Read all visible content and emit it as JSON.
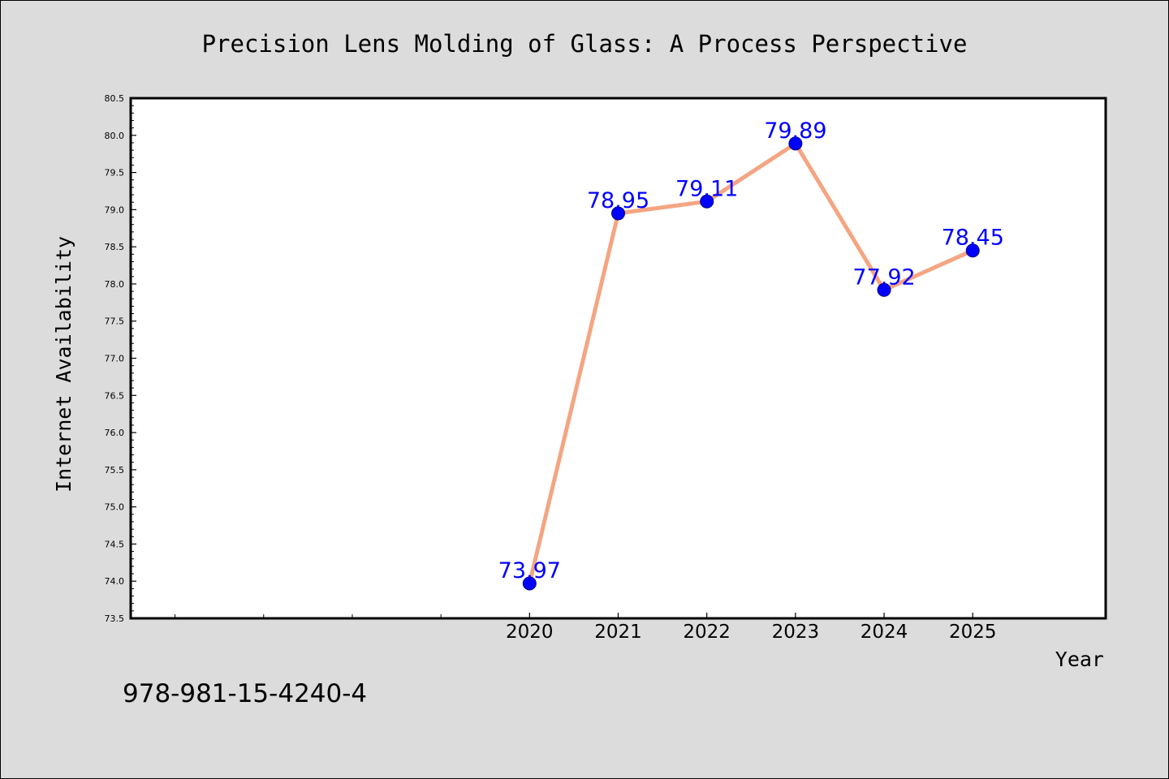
{
  "isbn": "978-981-15-4240-4",
  "chart_data": {
    "type": "line",
    "title": "Precision Lens Molding of Glass: A Process Perspective",
    "xlabel": "Year",
    "ylabel": "Internet Availability",
    "x": [
      2020,
      2021,
      2022,
      2023,
      2024,
      2025
    ],
    "series": [
      {
        "values": [
          73.97,
          78.95,
          79.11,
          79.89,
          77.92,
          78.45
        ]
      }
    ],
    "data_labels": [
      "73.97",
      "78.95",
      "79.11",
      "79.89",
      "77.92",
      "78.45"
    ],
    "x_tick_labels": [
      "2020",
      "2021",
      "2022",
      "2023",
      "2024",
      "2025"
    ],
    "xlim": [
      2015.5,
      2026.5
    ],
    "ylim": [
      73.5,
      80.5
    ],
    "y_ticks": [
      "73.5",
      "74.0",
      "74.5",
      "75.0",
      "75.5",
      "76.0",
      "76.5",
      "77.0",
      "77.5",
      "78.0",
      "78.5",
      "79.0",
      "79.5",
      "80.0",
      "80.5"
    ],
    "grid": false,
    "colors": {
      "line": "#f4a582",
      "marker": "#0000ff",
      "label": "#0000ff",
      "plot_background": "#ffffff",
      "figure_background": "#dcdcdc"
    }
  }
}
